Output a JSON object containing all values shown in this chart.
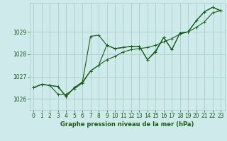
{
  "title": "Graphe pression niveau de la mer (hPa)",
  "background_color": "#ceeaea",
  "grid_color": "#aacece",
  "line_color": "#1a5c1a",
  "xlim": [
    -0.5,
    23.5
  ],
  "ylim": [
    1025.5,
    1030.3
  ],
  "yticks": [
    1026,
    1027,
    1028,
    1029
  ],
  "xticks": [
    0,
    1,
    2,
    3,
    4,
    5,
    6,
    7,
    8,
    9,
    10,
    11,
    12,
    13,
    14,
    15,
    16,
    17,
    18,
    19,
    20,
    21,
    22,
    23
  ],
  "series": [
    [
      1026.5,
      1026.65,
      1026.6,
      1026.55,
      1026.1,
      1026.5,
      1026.75,
      1028.8,
      1028.85,
      1028.4,
      1028.25,
      1028.3,
      1028.35,
      1028.35,
      1027.75,
      1028.15,
      1028.75,
      1028.2,
      1028.95,
      1029.0,
      1029.5,
      1029.9,
      1030.1,
      1029.95
    ],
    [
      1026.5,
      1026.65,
      1026.6,
      1026.55,
      1026.1,
      1026.5,
      1026.75,
      1027.25,
      1027.5,
      1027.75,
      1027.9,
      1028.1,
      1028.2,
      1028.25,
      1028.3,
      1028.4,
      1028.55,
      1028.7,
      1028.9,
      1029.0,
      1029.2,
      1029.45,
      1029.85,
      1029.95
    ],
    [
      1026.5,
      1026.65,
      1026.6,
      1026.2,
      1026.2,
      1026.45,
      1026.7,
      1027.25,
      1027.5,
      1028.4,
      1028.25,
      1028.3,
      1028.35,
      1028.35,
      1027.75,
      1028.1,
      1028.75,
      1028.2,
      1028.95,
      1029.0,
      1029.5,
      1029.9,
      1030.1,
      1029.95
    ]
  ],
  "marker": "+",
  "marker_size": 3,
  "line_width": 0.8,
  "tick_labelsize": 5.5,
  "xlabel_fontsize": 6.0,
  "figsize": [
    3.2,
    2.0
  ],
  "dpi": 100
}
